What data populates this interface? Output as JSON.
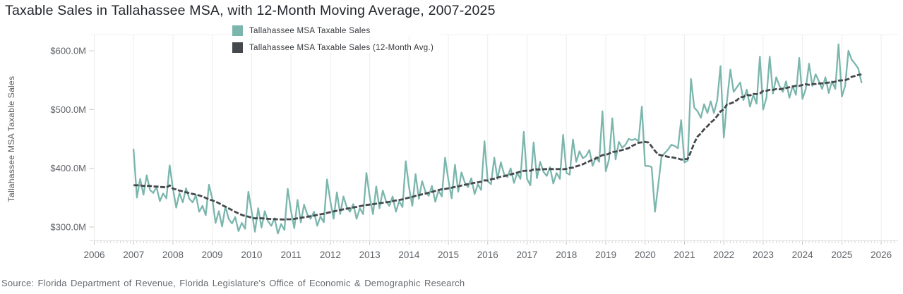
{
  "page": {
    "title": "Taxable Sales in Tallahassee MSA, with 12-Month Moving Average, 2007-2025",
    "source_note": "Source: Florida Department of Revenue, Florida Legislature's Office of Economic & Demographic Research"
  },
  "chart_data": {
    "type": "line",
    "title": "Taxable Sales in Tallahassee MSA, with 12-Month Moving Average, 2007-2025",
    "xlabel": "",
    "ylabel": "Tallahassee MSA Taxable Sales",
    "unit": "USD millions",
    "grid": "vertical-year-lines-only",
    "legend_position": "top-center",
    "x_axis": {
      "tick_labels": [
        "2006",
        "2007",
        "2008",
        "2009",
        "2010",
        "2011",
        "2012",
        "2013",
        "2014",
        "2015",
        "2016",
        "2017",
        "2018",
        "2019",
        "2020",
        "2021",
        "2022",
        "2023",
        "2024",
        "2025",
        "2026"
      ],
      "minor_ticks": "monthly",
      "domain": [
        2006,
        2026.4
      ]
    },
    "y_axis": {
      "ticks": [
        {
          "value": 600,
          "label": "$600.0M"
        },
        {
          "value": 500,
          "label": "$500.0M"
        },
        {
          "value": 400,
          "label": "$400.0M"
        },
        {
          "value": 300,
          "label": "$300.0M"
        }
      ]
    },
    "series": [
      {
        "name": "Tallahassee MSA Taxable Sales",
        "color": "#7bb6ad",
        "frequency": "monthly",
        "start": "2007-01",
        "end": "2025-07",
        "values": [
          432,
          350,
          382,
          355,
          388,
          363,
          358,
          368,
          344,
          357,
          349,
          405,
          365,
          333,
          358,
          342,
          366,
          348,
          342,
          354,
          326,
          336,
          320,
          372,
          348,
          307,
          327,
          301,
          335,
          314,
          306,
          317,
          293,
          307,
          297,
          360,
          327,
          292,
          332,
          299,
          327,
          310,
          302,
          315,
          289,
          305,
          295,
          365,
          328,
          298,
          346,
          308,
          338,
          321,
          314,
          326,
          302,
          318,
          308,
          381,
          344,
          314,
          359,
          322,
          352,
          334,
          326,
          339,
          314,
          332,
          322,
          392,
          352,
          322,
          369,
          332,
          362,
          344,
          336,
          352,
          326,
          344,
          334,
          412,
          368,
          336,
          390,
          348,
          378,
          360,
          353,
          370,
          343,
          362,
          352,
          418,
          380,
          349,
          406,
          360,
          393,
          376,
          368,
          383,
          356,
          373,
          363,
          446,
          378,
          373,
          418,
          382,
          410,
          390,
          385,
          400,
          375,
          392,
          382,
          462,
          382,
          371,
          444,
          383,
          411,
          394,
          387,
          402,
          374,
          392,
          382,
          457,
          392,
          389,
          449,
          411,
          429,
          417,
          421,
          431,
          404,
          419,
          411,
          497,
          395,
          415,
          485,
          415,
          445,
          435,
          440,
          450,
          448,
          450,
          446,
          505,
          404,
          404,
          402,
          326,
          371,
          419,
          426,
          432,
          440,
          438,
          434,
          482,
          410,
          413,
          552,
          503,
          497,
          486,
          509,
          494,
          514,
          494,
          516,
          574,
          452,
          516,
          568,
          530,
          538,
          546,
          516,
          534,
          505,
          525,
          510,
          590,
          500,
          520,
          590,
          527,
          555,
          540,
          530,
          548,
          520,
          540,
          525,
          588,
          518,
          535,
          578,
          540,
          560,
          548,
          535,
          555,
          528,
          548,
          535,
          611,
          522,
          540,
          600,
          585,
          578,
          570,
          546
        ]
      },
      {
        "name": "Tallahassee MSA Taxable Sales (12-Month Avg.)",
        "color": "#45484c",
        "derivation": "trailing-12-month-average-of-series-0",
        "initial_values": [
          371,
          371,
          371,
          370,
          370,
          370,
          369,
          369,
          368,
          368,
          367
        ]
      }
    ]
  }
}
